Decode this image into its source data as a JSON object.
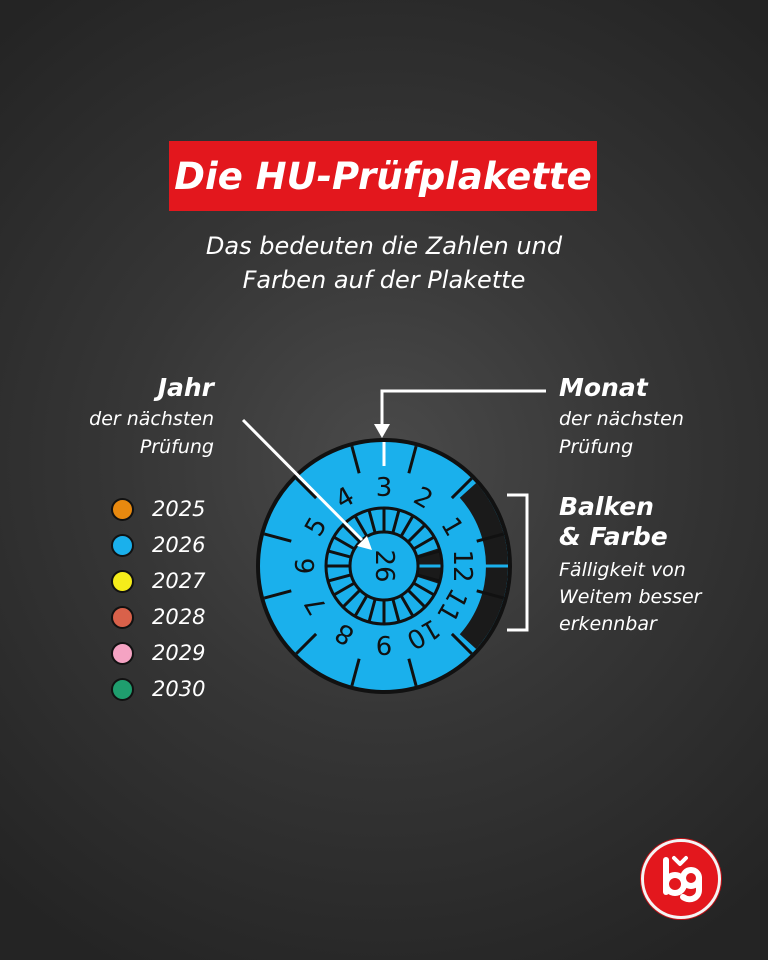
{
  "header": {
    "title": "Die HU-Prüfplakette",
    "subtitle_line1": "Das bedeuten die Zahlen und",
    "subtitle_line2": "Farben auf der Plakette"
  },
  "labels": {
    "year_title": "Jahr",
    "year_line1": "der nächsten",
    "year_line2": "Prüfung",
    "month_title": "Monat",
    "month_line1": "der nächsten",
    "month_line2": "Prüfung",
    "bar_line1": "Balken",
    "bar_line2": "& Farbe",
    "bar_desc1": "Fälligkeit von",
    "bar_desc2": "Weitem besser",
    "bar_desc3": "erkennbar"
  },
  "legend": [
    {
      "year": "2025",
      "color": "#e8890f"
    },
    {
      "year": "2026",
      "color": "#1ab0ec"
    },
    {
      "year": "2027",
      "color": "#f5ec1a"
    },
    {
      "year": "2028",
      "color": "#d9614a"
    },
    {
      "year": "2029",
      "color": "#f5a3c3"
    },
    {
      "year": "2030",
      "color": "#1f9e6e"
    }
  ],
  "badge": {
    "year": "26",
    "months": [
      "1",
      "2",
      "3",
      "4",
      "5",
      "6",
      "7",
      "8",
      "9",
      "10",
      "11",
      "12"
    ],
    "color": "#1ab0ec"
  }
}
